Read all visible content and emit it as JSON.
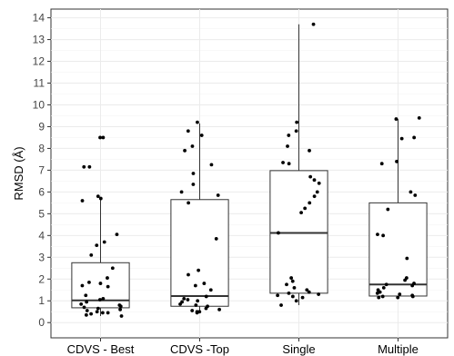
{
  "chart_data": {
    "type": "box",
    "title": "",
    "xlabel": "",
    "ylabel": "RMSD (Å)",
    "ylim": [
      -0.7,
      14.4
    ],
    "yticks": [
      0,
      1,
      2,
      3,
      4,
      5,
      6,
      7,
      8,
      9,
      10,
      11,
      12,
      13,
      14
    ],
    "grid": true,
    "background": "#ffffff",
    "grid_color": "#ebebeb",
    "box_color": "#333333",
    "point_color": "#000000",
    "categories": [
      "CDVS - Best",
      "CDVS -Top",
      "Single",
      "Multiple"
    ],
    "boxes": [
      {
        "q1": 0.68,
        "median": 1.02,
        "q3": 2.75,
        "whisker_low": 0.3,
        "whisker_high": 5.75
      },
      {
        "q1": 0.75,
        "median": 1.22,
        "q3": 5.65,
        "whisker_low": 0.45,
        "whisker_high": 9.15
      },
      {
        "q1": 1.35,
        "median": 4.12,
        "q3": 6.98,
        "whisker_low": 0.8,
        "whisker_high": 13.7
      },
      {
        "q1": 1.22,
        "median": 1.75,
        "q3": 5.5,
        "whisker_low": 1.15,
        "whisker_high": 9.35
      }
    ],
    "points": [
      [
        8.5,
        8.5,
        7.15,
        7.15,
        5.8,
        5.7,
        5.6,
        4.05,
        3.7,
        3.55,
        3.1,
        2.5,
        2.05,
        1.7,
        1.8,
        1.85,
        1.65,
        1.25,
        1.1,
        1.05,
        0.95,
        0.85,
        0.8,
        0.75,
        0.7,
        0.65,
        0.6,
        0.55,
        0.5,
        0.45,
        0.45,
        0.4,
        0.35,
        0.3
      ],
      [
        9.2,
        8.8,
        8.6,
        8.1,
        7.9,
        7.25,
        6.85,
        6.35,
        6.0,
        5.85,
        5.5,
        3.85,
        2.4,
        2.2,
        1.8,
        1.7,
        1.5,
        1.2,
        1.1,
        1.05,
        1.0,
        0.95,
        0.85,
        0.8,
        0.75,
        0.65,
        0.6,
        0.55,
        0.5,
        0.5,
        0.45
      ],
      [
        13.7,
        9.2,
        8.8,
        8.6,
        8.1,
        7.9,
        7.35,
        7.3,
        6.7,
        6.55,
        6.4,
        6.0,
        5.8,
        5.5,
        5.25,
        5.05,
        4.12,
        2.05,
        1.9,
        1.75,
        1.6,
        1.5,
        1.4,
        1.35,
        1.3,
        1.25,
        1.2,
        1.15,
        1.0,
        0.8
      ],
      [
        9.4,
        9.35,
        8.5,
        8.45,
        7.4,
        7.3,
        6.0,
        5.85,
        5.2,
        4.05,
        4.0,
        2.95,
        2.05,
        1.95,
        1.8,
        1.75,
        1.7,
        1.6,
        1.5,
        1.4,
        1.35,
        1.3,
        1.25,
        1.2,
        1.2,
        1.15,
        1.15
      ]
    ]
  }
}
